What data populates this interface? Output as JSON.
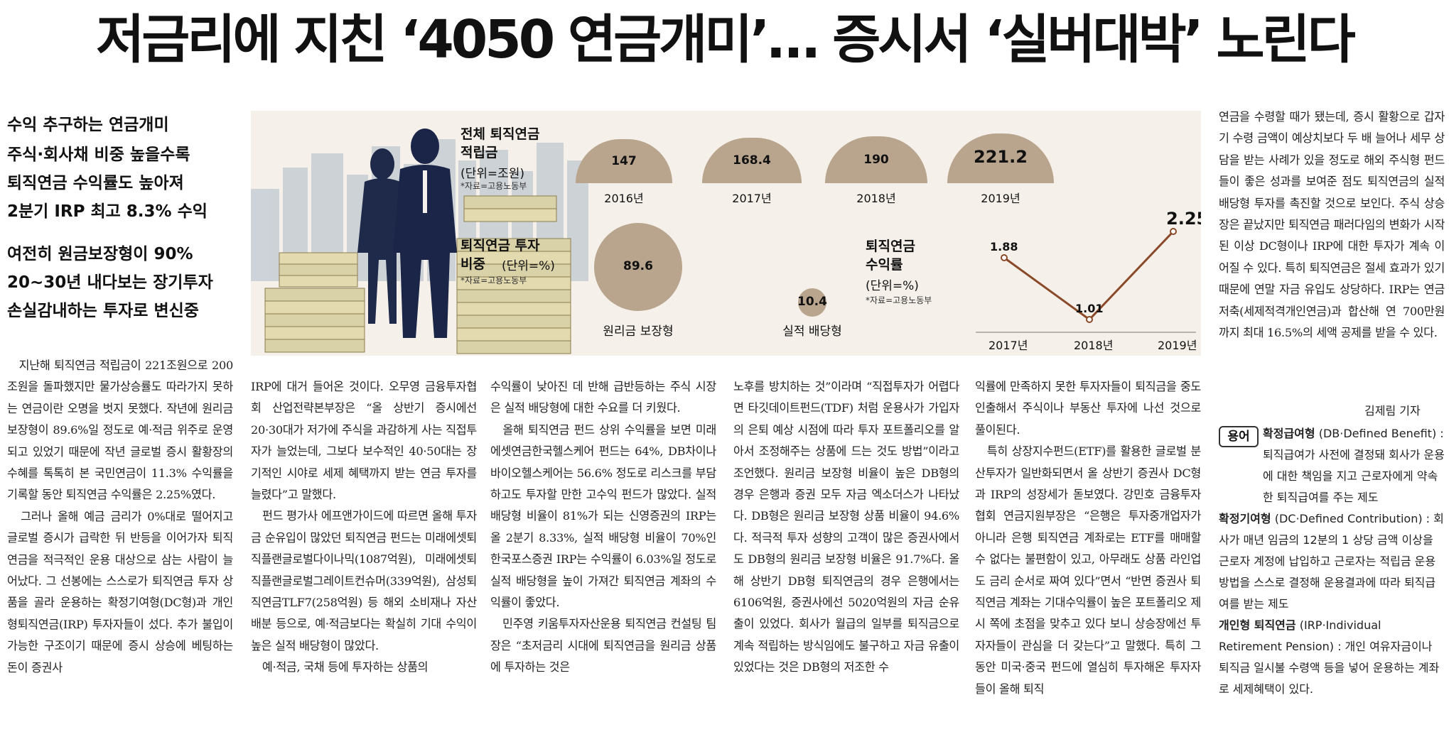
{
  "headline": "저금리에 지친 ‘4050 연금개미’… 증시서 ‘실버대박’ 노린다",
  "subheads": {
    "s1": "수익 추구하는 연금개미",
    "s2": "주식·회사채 비중 높을수록",
    "s3": "퇴직연금 수익률도 높아져",
    "s4": "2분기 IRP 최고 8.3% 수익",
    "s5": "여전히 원금보장형이 90%",
    "s6": "20~30년 내다보는 장기투자",
    "s7": "손실감내하는 투자로 변신중"
  },
  "graphic": {
    "total": {
      "title": "전체 퇴직연금\n적립금",
      "unit": "(단위=조원)",
      "source": "*자료=고용노동부",
      "bars": [
        {
          "year": "2016년",
          "value": 147
        },
        {
          "year": "2017년",
          "value": 168.4
        },
        {
          "year": "2018년",
          "value": 190
        },
        {
          "year": "2019년",
          "value": 221.2
        }
      ],
      "value_labels": [
        "147",
        "168.4",
        "190",
        "221.2"
      ]
    },
    "share": {
      "title": "퇴직연금 투자\n비중",
      "unit": "(단위=%)",
      "source": "*자료=고용노동부",
      "items": [
        {
          "label": "원리금 보장형",
          "value": 89.6,
          "text": "89.6"
        },
        {
          "label": "실적 배당형",
          "value": 10.4,
          "text": "10.4"
        }
      ]
    },
    "return": {
      "title": "퇴직연금\n수익률",
      "unit": "(단위=%)",
      "source": "*자료=고용노동부",
      "x": [
        "2017년",
        "2018년",
        "2019년"
      ],
      "y": [
        1.88,
        1.01,
        2.25
      ],
      "labels": [
        "1.88",
        "1.01",
        "2.25"
      ]
    }
  },
  "chart_data": [
    {
      "type": "bar",
      "title": "전체 퇴직연금 적립금",
      "ylabel": "(단위=조원)",
      "categories": [
        "2016년",
        "2017년",
        "2018년",
        "2019년"
      ],
      "values": [
        147,
        168.4,
        190,
        221.2
      ]
    },
    {
      "type": "pie",
      "title": "퇴직연금 투자 비중",
      "ylabel": "(단위=%)",
      "categories": [
        "원리금 보장형",
        "실적 배당형"
      ],
      "values": [
        89.6,
        10.4
      ]
    },
    {
      "type": "line",
      "title": "퇴직연금 수익률",
      "ylabel": "(단위=%)",
      "x": [
        "2017년",
        "2018년",
        "2019년"
      ],
      "values": [
        1.88,
        1.01,
        2.25
      ]
    }
  ],
  "columns": {
    "c1": "　지난해 퇴직연금 적립금이 221조원으로 200조원을 돌파했지만 물가상승률도 따라가지 못하는 연금이란 오명을 벗지 못했다. 작년에 원리금 보장형이 89.6%일 정도로 예·적금 위주로 운영되고 있었기 때문에 작년 글로벌 증시 활황장의 수혜를 톡톡히 본 국민연금이 11.3% 수익률을 기록할 동안 퇴직연금 수익률은 2.25%였다.\n　그러나 올해 예금 금리가 0%대로 떨어지고 글로벌 증시가 급락한 뒤 반등을 이어가자 퇴직연금을 적극적인 운용 대상으로 삼는 사람이 늘어났다. 그 선봉에는 스스로가 퇴직연금 투자 상품을 골라 운용하는 확정기여형(DC형)과 개인형퇴직연금(IRP) 투자자들이 섰다. 추가 불입이 가능한 구조이기 때문에 증시 상승에 베팅하는 돈이 증권사",
    "c2": "IRP에 대거 들어온 것이다. 오무영 금융투자협회 산업전략본부장은 “올 상반기 증시에선 20·30대가 저가에 주식을 과감하게 사는 직접투자가 늘었는데, 그보다 보수적인 40·50대는 장기적인 시야로 세제 혜택까지 받는 연금 투자를 늘렸다”고 말했다.\n　펀드 평가사 에프앤가이드에 따르면 올해 투자금 순유입이 많았던 퇴직연금 펀드는 미래에셋퇴직플랜글로벌다이나믹(1087억원), 미래에셋퇴직플랜글로벌그레이트컨슈머(339억원), 삼성퇴직연금TLF7(258억원) 등 해외 소비재나 자산 배분 등으로, 예·적금보다는 확실히 기대 수익이 높은 실적 배당형이 많았다.\n　예·적금, 국채 등에 투자하는 상품의",
    "c3": "수익률이 낮아진 데 반해 급반등하는 주식 시장은 실적 배당형에 대한 수요를 더 키웠다.\n　올해 퇴직연금 펀드 상위 수익률을 보면 미래에셋연금한국헬스케어 펀드는 64%, DB차이나바이오헬스케어는 56.6% 정도로 리스크를 부담하고도 투자할 만한 고수익 펀드가 많았다. 실적 배당형 비율이 81%가 되는 신영증권의 IRP는 올 2분기 8.33%, 실적 배당형 비율이 70%인 한국포스증권 IRP는 수익률이 6.03%일 정도로 실적 배당형을 높이 가져간 퇴직연금 계좌의 수익률이 좋았다.\n　민주영 키움투자자산운용 퇴직연금 컨설팅 팀장은 “초저금리 시대에 퇴직연금을 원리금 상품에 투자하는 것은",
    "c4": "노후를 방치하는 것”이라며 “직접투자가 어렵다면 타깃데이트펀드(TDF) 처럼 운용사가 가입자의 은퇴 예상 시점에 따라 투자 포트폴리오를 알아서 조정해주는 상품에 드는 것도 방법”이라고 조언했다. 원리금 보장형 비율이 높은 DB형의 경우 은행과 증권 모두 자금 엑소더스가 나타났다. DB형은 원리금 보장형 상품 비율이 94.6%다. 적극적 투자 성향의 고객이 많은 증권사에서도 DB형의 원리금 보장형 비율은 91.7%다. 올해 상반기 DB형 퇴직연금의 경우 은행에서는 6106억원, 증권사에선 5020억원의 자금 순유출이 있었다. 회사가 월급의 일부를 퇴직금으로 계속 적립하는 방식임에도 불구하고 자금 유출이 있었다는 것은 DB형의 저조한 수",
    "c5": "익률에 만족하지 못한 투자자들이 퇴직금을 중도 인출해서 주식이나 부동산 투자에 나선 것으로 풀이된다.\n　특히 상장지수펀드(ETF)를 활용한 글로벌 분산투자가 일반화되면서 올 상반기 증권사 DC형과 IRP의 성장세가 돋보였다. 강민호 금융투자협회 연금지원부장은 “은행은 투자중개업자가 아니라 은행 퇴직연금 계좌로는 ETF를 매매할 수 없다는 불편함이 있고, 아무래도 상품 라인업도 금리 순서로 짜여 있다”면서 “반면 증권사 퇴직연금 계좌는 기대수익률이 높은 포트폴리오 제시 쪽에 초점을 맞추고 있다 보니 상승장에선 투자자들이 관심을 더 갖는다”고 말했다. 특히 그동안 미국·중국 펀드에 열심히 투자해온 투자자들이 올해 퇴직",
    "c6": "연금을 수령할 때가 됐는데, 증시 활황으로 갑자기 수령 금액이 예상치보다 두 배 늘어나 세무 상담을 받는 사례가 있을 정도로 해외 주식형 펀드들이 좋은 성과를 보여준 점도 퇴직연금의 실적 배당형 투자를 촉진할 것으로 보인다. 주식 상승장은 끝났지만 퇴직연금 패러다임의 변화가 시작된 이상 DC형이나 IRP에 대한 투자가 계속 이어질 수 있다. 특히 퇴직연금은 절세 효과가 있기 때문에 연말 자금 유입도 상당하다. IRP는 연금저축(세제적격개인연금)과 합산해 연 700만원까지 최대 16.5%의 세액 공제를 받을 수 있다."
  },
  "byline": "김제림 기자",
  "glossary": {
    "tag": "용어",
    "t1": "확정급여형",
    "d1": "(DB·Defined Benefit) : 퇴직급여가 사전에 결정돼 회사가 운용에 대한 책임을 지고 근로자에게 약속한 퇴직급여를 주는 제도",
    "t2": "확정기여형",
    "d2": "(DC·Defined Contribution) : 회사가 매년 임금의 12분의 1 상당 금액 이상을 근로자 계정에 납입하고 근로자는 적립금 운용방법을 스스로 결정해 운용결과에 따라 퇴직급여를 받는 제도",
    "t3": "개인형 퇴직연금",
    "d3": "(IRP·Individual Retirement Pension) : 개인 여유자금이나 퇴직금 일시불 수령액 등을 넣어 운용하는 계좌로 세제혜택이 있다."
  }
}
